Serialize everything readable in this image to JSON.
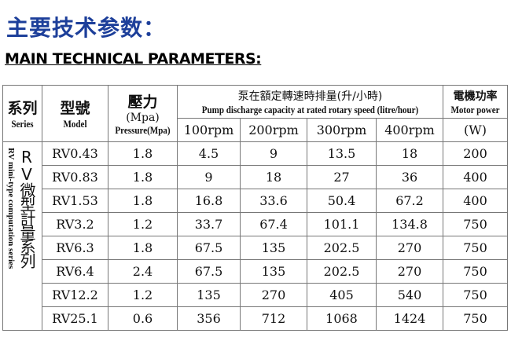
{
  "title_cn": "主要技术参数：",
  "title_en": "MAIN TECHNICAL PARAMETERS:",
  "headers": {
    "series_cn": "系列",
    "series_en": "Series",
    "model_cn": "型號",
    "model_en": "Model",
    "pressure_cn": "壓力",
    "pressure_unit": "(Mpa)",
    "pressure_en": "Pressure(Mpa)",
    "capacity_cn": "泵在額定轉速時排量(升/小時)",
    "capacity_en": "Pump discharge capacity at rated rotary speed (litre/hour)",
    "speeds": [
      "100rpm",
      "200rpm",
      "300rpm",
      "400rpm"
    ],
    "power_cn": "電機功率",
    "power_en": "Motor power",
    "power_unit": "(W)"
  },
  "series": {
    "cn": "RV微型計量系列",
    "en": "RV mini-type computation series"
  },
  "rows": [
    [
      "RV0.43",
      "1.8",
      "4.5",
      "9",
      "13.5",
      "18",
      "200"
    ],
    [
      "RV0.83",
      "1.8",
      "9",
      "18",
      "27",
      "36",
      "400"
    ],
    [
      "RV1.53",
      "1.8",
      "16.8",
      "33.6",
      "50.4",
      "67.2",
      "400"
    ],
    [
      "RV3.2",
      "1.2",
      "33.7",
      "67.4",
      "101.1",
      "134.8",
      "750"
    ],
    [
      "RV6.3",
      "1.8",
      "67.5",
      "135",
      "202.5",
      "270",
      "750"
    ],
    [
      "RV6.4",
      "2.4",
      "67.5",
      "135",
      "202.5",
      "270",
      "750"
    ],
    [
      "RV12.2",
      "1.2",
      "135",
      "270",
      "405",
      "540",
      "750"
    ],
    [
      "RV25.1",
      "0.6",
      "356",
      "712",
      "1068",
      "1424",
      "750"
    ]
  ]
}
